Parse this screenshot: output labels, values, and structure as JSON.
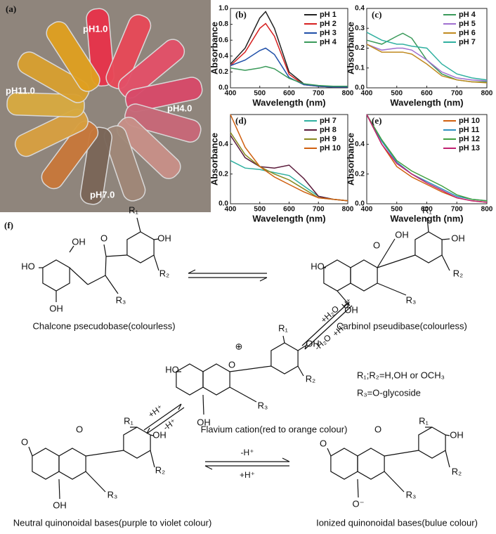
{
  "photo": {
    "label": "(a)",
    "tube_labels": [
      "pH1.0",
      "pH11.0",
      "pH4.0",
      "pH7.0"
    ]
  },
  "chart_data": [
    {
      "type": "line",
      "title": "(b)",
      "x_label": "Wavelength (nm)",
      "y_label": "Absorbance",
      "legend": "upper right",
      "xlim": [
        400,
        800
      ],
      "xticks": [
        400,
        500,
        600,
        700,
        800
      ],
      "ylim": [
        0,
        1.0
      ],
      "yticks": [
        {
          "value": 0,
          "label": "0.0"
        },
        0.2,
        0.4,
        0.6,
        0.8,
        {
          "value": 1,
          "label": "1.0"
        }
      ],
      "x": [
        400,
        450,
        500,
        520,
        550,
        600,
        650,
        700,
        750,
        800
      ],
      "series": [
        {
          "name": "pH 1",
          "color": "#222222",
          "values": [
            0.3,
            0.5,
            0.88,
            0.96,
            0.75,
            0.2,
            0.05,
            0.02,
            0.01,
            0.01
          ]
        },
        {
          "name": "pH 2",
          "color": "#d62020",
          "values": [
            0.28,
            0.45,
            0.75,
            0.81,
            0.65,
            0.17,
            0.04,
            0.02,
            0.01,
            0.01
          ]
        },
        {
          "name": "pH 3",
          "color": "#1f4fa8",
          "values": [
            0.28,
            0.35,
            0.47,
            0.5,
            0.42,
            0.13,
            0.04,
            0.02,
            0.01,
            0.01
          ]
        },
        {
          "name": "pH 4",
          "color": "#3a9a5a",
          "values": [
            0.25,
            0.22,
            0.25,
            0.27,
            0.24,
            0.12,
            0.05,
            0.03,
            0.02,
            0.02
          ]
        }
      ]
    },
    {
      "type": "line",
      "title": "(c)",
      "x_label": "Wavelength (nm)",
      "y_label": "Absorbance",
      "legend": "upper right",
      "xlim": [
        400,
        800
      ],
      "xticks": [
        400,
        500,
        600,
        700,
        800
      ],
      "ylim": [
        0,
        0.4
      ],
      "yticks": [
        {
          "value": 0,
          "label": "0.0"
        },
        0.1,
        0.2,
        0.3,
        0.4
      ],
      "x": [
        400,
        450,
        500,
        520,
        550,
        600,
        650,
        700,
        750,
        800
      ],
      "series": [
        {
          "name": "pH 4",
          "color": "#3a9a5a",
          "values": [
            0.24,
            0.22,
            0.26,
            0.275,
            0.25,
            0.14,
            0.07,
            0.04,
            0.03,
            0.03
          ]
        },
        {
          "name": "pH 5",
          "color": "#a070d0",
          "values": [
            0.22,
            0.19,
            0.2,
            0.2,
            0.19,
            0.14,
            0.08,
            0.05,
            0.04,
            0.035
          ]
        },
        {
          "name": "pH 6",
          "color": "#c08a20",
          "values": [
            0.22,
            0.18,
            0.18,
            0.18,
            0.17,
            0.12,
            0.06,
            0.04,
            0.03,
            0.025
          ]
        },
        {
          "name": "pH 7",
          "color": "#30b0a0",
          "values": [
            0.28,
            0.24,
            0.22,
            0.22,
            0.21,
            0.2,
            0.12,
            0.07,
            0.05,
            0.04
          ]
        }
      ]
    },
    {
      "type": "line",
      "title": "(d)",
      "x_label": "Wavelength (nm)",
      "y_label": "Absorbance",
      "legend": "upper right",
      "xlim": [
        400,
        800
      ],
      "xticks": [
        400,
        500,
        600,
        700,
        800
      ],
      "ylim": [
        0,
        0.6
      ],
      "yticks": [
        {
          "value": 0,
          "label": "0.0"
        },
        0.2,
        0.4
      ],
      "x": [
        400,
        450,
        500,
        550,
        600,
        650,
        700,
        750,
        800
      ],
      "series": [
        {
          "name": "pH 7",
          "color": "#30b0a0",
          "values": [
            0.29,
            0.24,
            0.23,
            0.21,
            0.19,
            0.12,
            0.05,
            0.03,
            0.02
          ]
        },
        {
          "name": "pH 8",
          "color": "#5a1a3a",
          "values": [
            0.46,
            0.31,
            0.25,
            0.24,
            0.26,
            0.17,
            0.05,
            0.03,
            0.02
          ]
        },
        {
          "name": "pH 9",
          "color": "#8a8a20",
          "values": [
            0.48,
            0.33,
            0.25,
            0.2,
            0.16,
            0.1,
            0.04,
            0.03,
            0.02
          ]
        },
        {
          "name": "pH 10",
          "color": "#d06010",
          "values": [
            0.6,
            0.38,
            0.25,
            0.18,
            0.13,
            0.08,
            0.04,
            0.03,
            0.02
          ]
        }
      ]
    },
    {
      "type": "line",
      "title": "(e)",
      "x_label": "Wavelength (nm)",
      "y_label": "Absorbance",
      "legend": "upper right",
      "xlim": [
        400,
        800
      ],
      "xticks": [
        400,
        500,
        600,
        700,
        800
      ],
      "ylim": [
        0,
        0.6
      ],
      "yticks": [
        {
          "value": 0,
          "label": "0.0"
        },
        0.2,
        0.4
      ],
      "x": [
        400,
        450,
        500,
        550,
        600,
        650,
        700,
        750,
        800
      ],
      "series": [
        {
          "name": "pH 10",
          "color": "#d06010",
          "values": [
            0.6,
            0.4,
            0.25,
            0.18,
            0.13,
            0.08,
            0.04,
            0.02,
            0.01
          ]
        },
        {
          "name": "pH 11",
          "color": "#3090c0",
          "values": [
            0.6,
            0.42,
            0.28,
            0.2,
            0.15,
            0.1,
            0.05,
            0.03,
            0.02
          ]
        },
        {
          "name": "pH 12",
          "color": "#40a040",
          "values": [
            0.6,
            0.43,
            0.29,
            0.22,
            0.17,
            0.12,
            0.06,
            0.03,
            0.02
          ]
        },
        {
          "name": "pH 13",
          "color": "#c02070",
          "values": [
            0.6,
            0.4,
            0.27,
            0.2,
            0.14,
            0.09,
            0.04,
            0.02,
            0.01
          ]
        }
      ]
    }
  ],
  "scheme": {
    "label": "(f)",
    "chalcone": {
      "atoms": [
        "HO",
        "OH",
        "OH",
        "O",
        "R₁",
        "OH",
        "R₂",
        "R₃"
      ],
      "caption": "Chalcone psecudobase(colourless)"
    },
    "carbinol": {
      "atoms": [
        "HO",
        "O",
        "OH",
        "R₁",
        "OH",
        "R₂",
        "OH",
        "R₃"
      ],
      "caption": "Carbinol pseudibase(colourless)"
    },
    "flavium": {
      "atoms": [
        "HO",
        "O",
        "⊕",
        "R₁",
        "OH",
        "R₂",
        "OH",
        "R₃"
      ],
      "caption": "Flavium cation(red to orange colour)"
    },
    "neutral": {
      "atoms": [
        "O",
        "O",
        "R₁",
        "OH",
        "R₂",
        "OH",
        "R₃"
      ],
      "caption": "Neutral quinonoidal bases(purple to violet colour)"
    },
    "ionized": {
      "atoms": [
        "O",
        "O",
        "R₁",
        "OH",
        "R₂",
        "O⁻",
        "R₃"
      ],
      "caption": "Ionized quinonoidal bases(bulue colour)"
    },
    "notes": [
      "R₁;R₂=H,OH or OCH₃",
      "R₃=O-glycoside"
    ],
    "arrow_labels": {
      "hydration": [
        "+H₂O",
        "-H⁺"
      ],
      "dehydration": [
        "-H₂O",
        "+H⁺"
      ],
      "flavium_neutral": [
        "+H⁺",
        "-H⁺"
      ],
      "neutral_ionized": [
        "-H⁺",
        "+H⁺"
      ]
    }
  }
}
